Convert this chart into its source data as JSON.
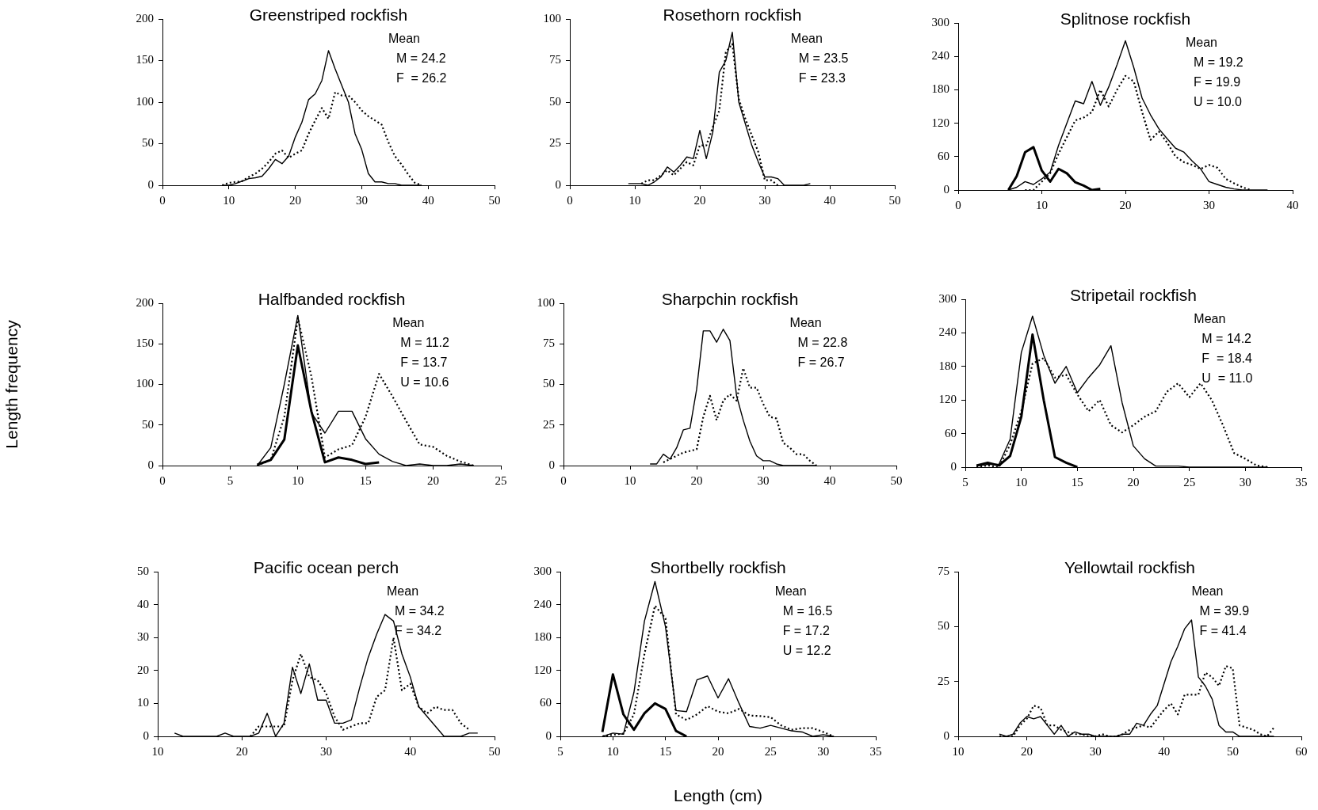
{
  "chart_data": [
    {
      "type": "line",
      "title": "Greenstriped rockfish",
      "xlim": [
        0,
        50
      ],
      "ylim": [
        0,
        200
      ],
      "xticks": [
        0,
        10,
        20,
        30,
        40,
        50
      ],
      "yticks": [
        0,
        50,
        100,
        150,
        200
      ],
      "marker": "none",
      "annotations": [
        "Mean",
        "M = 24.2",
        "F  = 26.2"
      ],
      "series": [
        {
          "color": "#000000",
          "line_style": "solid",
          "x": [
            9,
            10,
            11,
            12,
            13,
            14,
            15,
            16,
            17,
            18,
            19,
            20,
            21,
            22,
            23,
            24,
            25,
            26,
            27,
            28,
            29,
            30,
            31,
            32,
            33,
            34,
            35,
            36,
            37,
            38,
            39
          ],
          "values": [
            0,
            0,
            2,
            5,
            8,
            9,
            11,
            20,
            31,
            26,
            35,
            58,
            76,
            103,
            110,
            126,
            162,
            140,
            120,
            100,
            62,
            43,
            14,
            4,
            4,
            2,
            2,
            0,
            0,
            0,
            0
          ]
        },
        {
          "color": "#000000",
          "line_style": "dotted",
          "x": [
            9,
            10,
            11,
            12,
            13,
            14,
            15,
            16,
            17,
            18,
            19,
            20,
            21,
            22,
            23,
            24,
            25,
            26,
            27,
            28,
            29,
            30,
            31,
            32,
            33,
            34,
            35,
            36,
            37,
            38,
            39
          ],
          "values": [
            0,
            3,
            4,
            5,
            10,
            14,
            20,
            28,
            38,
            42,
            33,
            38,
            42,
            62,
            78,
            93,
            80,
            112,
            108,
            108,
            100,
            90,
            83,
            78,
            73,
            52,
            35,
            25,
            13,
            3,
            0
          ]
        }
      ]
    },
    {
      "type": "line",
      "title": "Rosethorn rockfish",
      "xlim": [
        0,
        50
      ],
      "ylim": [
        0,
        100
      ],
      "xticks": [
        0,
        10,
        20,
        30,
        40,
        50
      ],
      "yticks": [
        0,
        25,
        50,
        75,
        100
      ],
      "marker": "none",
      "annotations": [
        "Mean",
        "M = 23.5",
        "F = 23.3"
      ],
      "series": [
        {
          "color": "#000000",
          "line_style": "solid",
          "x": [
            9,
            10,
            11,
            12,
            13,
            14,
            15,
            16,
            17,
            18,
            19,
            20,
            21,
            22,
            23,
            24,
            25,
            26,
            27,
            28,
            29,
            30,
            31,
            32,
            33,
            34,
            35,
            36,
            37
          ],
          "values": [
            1,
            1,
            1,
            0,
            2,
            5,
            11,
            8,
            12,
            17,
            16,
            33,
            16,
            32,
            68,
            75,
            92,
            50,
            37,
            24,
            14,
            5,
            5,
            4,
            0,
            0,
            0,
            0,
            1
          ]
        },
        {
          "color": "#000000",
          "line_style": "dotted",
          "x": [
            11,
            12,
            13,
            14,
            15,
            16,
            17,
            18,
            19,
            20,
            21,
            22,
            23,
            24,
            25,
            26,
            27,
            28,
            29,
            30,
            31,
            32
          ],
          "values": [
            1,
            3,
            3,
            6,
            9,
            6,
            10,
            14,
            12,
            24,
            24,
            35,
            45,
            80,
            85,
            52,
            40,
            30,
            20,
            3,
            3,
            0
          ]
        }
      ]
    },
    {
      "type": "line",
      "title": "Splitnose rockfish",
      "xlim": [
        0,
        40
      ],
      "ylim": [
        0,
        300
      ],
      "xticks": [
        0,
        10,
        20,
        30,
        40
      ],
      "yticks": [
        0,
        60,
        120,
        180,
        240,
        300
      ],
      "marker": "none",
      "annotations": [
        "Mean",
        "M = 19.2",
        "F = 19.9",
        "U = 10.0"
      ],
      "series": [
        {
          "color": "#000000",
          "line_style": "solid",
          "x": [
            6,
            7,
            8,
            9,
            10,
            11,
            12,
            13,
            14,
            15,
            16,
            17,
            18,
            19,
            20,
            21,
            22,
            23,
            24,
            25,
            26,
            27,
            28,
            29,
            30,
            31,
            32,
            33,
            34,
            35,
            36,
            37
          ],
          "values": [
            0,
            5,
            15,
            10,
            20,
            32,
            80,
            120,
            160,
            155,
            195,
            152,
            185,
            225,
            268,
            220,
            165,
            135,
            110,
            92,
            75,
            68,
            52,
            38,
            15,
            10,
            5,
            2,
            0,
            0,
            0,
            0
          ]
        },
        {
          "color": "#000000",
          "line_style": "dotted",
          "x": [
            8,
            9,
            10,
            11,
            12,
            13,
            14,
            15,
            16,
            17,
            18,
            19,
            20,
            21,
            22,
            23,
            24,
            25,
            26,
            27,
            28,
            29,
            30,
            31,
            32,
            33,
            34,
            35
          ],
          "values": [
            0,
            0,
            15,
            30,
            65,
            95,
            125,
            130,
            140,
            180,
            150,
            180,
            205,
            195,
            140,
            90,
            105,
            85,
            60,
            50,
            45,
            38,
            45,
            40,
            20,
            12,
            5,
            0
          ]
        },
        {
          "color": "#000000",
          "line_style": "solid",
          "x": [
            6,
            7,
            8,
            9,
            10,
            11,
            12,
            13,
            14,
            15,
            16,
            17
          ],
          "values": [
            0,
            25,
            68,
            77,
            35,
            15,
            38,
            30,
            14,
            8,
            0,
            2
          ]
        }
      ]
    },
    {
      "type": "line",
      "title": "Halfbanded rockfish",
      "ylabel": "Length frequency",
      "xlim": [
        0,
        25
      ],
      "ylim": [
        0,
        200
      ],
      "xticks": [
        0,
        5,
        10,
        15,
        20,
        25
      ],
      "yticks": [
        0,
        50,
        100,
        150,
        200
      ],
      "marker": "none",
      "annotations": [
        "Mean",
        "M = 11.2",
        "F = 13.7",
        "U = 10.6"
      ],
      "series": [
        {
          "color": "#000000",
          "line_style": "solid",
          "x": [
            7,
            8,
            9,
            10,
            11,
            12,
            13,
            14,
            15,
            16,
            17,
            18,
            19,
            20,
            21,
            22,
            23
          ],
          "values": [
            0,
            22,
            100,
            185,
            65,
            40,
            67,
            67,
            33,
            14,
            5,
            0,
            2,
            0,
            0,
            2,
            0
          ]
        },
        {
          "color": "#000000",
          "line_style": "dotted",
          "x": [
            7,
            8,
            9,
            10,
            11,
            12,
            13,
            14,
            15,
            16,
            17,
            18,
            19,
            20,
            21,
            22,
            23
          ],
          "values": [
            0,
            7,
            60,
            182,
            110,
            10,
            20,
            25,
            60,
            113,
            85,
            55,
            26,
            23,
            12,
            5,
            0
          ]
        },
        {
          "color": "#000000",
          "line_style": "solid",
          "x": [
            7,
            8,
            9,
            10,
            11,
            12,
            13,
            14,
            15,
            16
          ],
          "values": [
            1,
            7,
            32,
            148,
            67,
            4,
            10,
            7,
            2,
            4
          ]
        }
      ]
    },
    {
      "type": "line",
      "title": "Sharpchin rockfish",
      "xlim": [
        0,
        50
      ],
      "ylim": [
        0,
        100
      ],
      "xticks": [
        0,
        10,
        20,
        30,
        40,
        50
      ],
      "yticks": [
        0,
        25,
        50,
        75,
        100
      ],
      "marker": "none",
      "annotations": [
        "Mean",
        "M = 22.8",
        "F = 26.7"
      ],
      "series": [
        {
          "color": "#000000",
          "line_style": "solid",
          "x": [
            13,
            14,
            15,
            16,
            17,
            18,
            19,
            20,
            21,
            22,
            23,
            24,
            25,
            26,
            27,
            28,
            29,
            30,
            31,
            32,
            33,
            34,
            35,
            36,
            37,
            38
          ],
          "values": [
            1,
            1,
            7,
            4,
            11,
            22,
            23,
            47,
            83,
            83,
            76,
            84,
            77,
            43,
            28,
            15,
            6,
            3,
            3,
            1,
            0,
            0,
            0,
            0,
            0,
            0
          ]
        },
        {
          "color": "#000000",
          "line_style": "dotted",
          "x": [
            15,
            16,
            17,
            18,
            19,
            20,
            21,
            22,
            23,
            24,
            25,
            26,
            27,
            28,
            29,
            30,
            31,
            32,
            33,
            34,
            35,
            36,
            37,
            38
          ],
          "values": [
            2,
            4,
            6,
            8,
            9,
            10,
            30,
            43,
            28,
            40,
            44,
            40,
            60,
            48,
            48,
            38,
            30,
            29,
            14,
            11,
            7,
            7,
            3,
            0
          ]
        }
      ]
    },
    {
      "type": "line",
      "title": "Stripetail rockfish",
      "xlim": [
        5,
        35
      ],
      "ylim": [
        0,
        300
      ],
      "xticks": [
        5,
        10,
        15,
        20,
        25,
        30,
        35
      ],
      "yticks": [
        0,
        60,
        120,
        180,
        240,
        300
      ],
      "marker": "none",
      "annotations": [
        "Mean",
        "M = 14.2",
        "F  = 18.4",
        "U  = 11.0"
      ],
      "series": [
        {
          "color": "#000000",
          "line_style": "solid",
          "x": [
            6,
            7,
            8,
            9,
            10,
            11,
            12,
            13,
            14,
            15,
            16,
            17,
            18,
            19,
            20,
            21,
            22,
            23,
            24,
            25,
            26,
            27,
            28,
            29,
            30,
            31,
            32
          ],
          "values": [
            2,
            5,
            5,
            50,
            205,
            270,
            200,
            150,
            180,
            133,
            160,
            183,
            217,
            115,
            38,
            15,
            2,
            2,
            2,
            0,
            0,
            0,
            0,
            0,
            0,
            0,
            0
          ]
        },
        {
          "color": "#000000",
          "line_style": "dotted",
          "x": [
            6,
            7,
            8,
            9,
            10,
            11,
            12,
            13,
            14,
            15,
            16,
            17,
            18,
            19,
            20,
            21,
            22,
            23,
            24,
            25,
            26,
            27,
            28,
            29,
            30,
            31,
            32
          ],
          "values": [
            0,
            3,
            0,
            40,
            100,
            185,
            195,
            160,
            165,
            130,
            100,
            120,
            75,
            62,
            75,
            90,
            100,
            135,
            150,
            125,
            150,
            120,
            75,
            25,
            15,
            3,
            0
          ]
        },
        {
          "color": "#000000",
          "line_style": "solid",
          "x": [
            6,
            7,
            8,
            9,
            10,
            11,
            12,
            13,
            14,
            15
          ],
          "values": [
            3,
            8,
            3,
            20,
            90,
            237,
            120,
            18,
            8,
            0
          ]
        }
      ]
    },
    {
      "type": "line",
      "title": "Pacific ocean perch",
      "xlim": [
        10,
        50
      ],
      "ylim": [
        0,
        50
      ],
      "xticks": [
        10,
        20,
        30,
        40,
        50
      ],
      "yticks": [
        0,
        10,
        20,
        30,
        40,
        50
      ],
      "marker": "none",
      "annotations": [
        "Mean",
        "M = 34.2",
        "F = 34.2"
      ],
      "series": [
        {
          "color": "#000000",
          "line_style": "solid",
          "x": [
            12,
            13,
            14,
            15,
            16,
            17,
            18,
            19,
            20,
            21,
            22,
            23,
            24,
            25,
            26,
            27,
            28,
            29,
            30,
            31,
            32,
            33,
            34,
            35,
            36,
            37,
            38,
            39,
            40,
            41,
            42,
            43,
            44,
            45,
            46,
            47,
            48
          ],
          "values": [
            1,
            0,
            0,
            0,
            0,
            0,
            1,
            0,
            0,
            0,
            1,
            7,
            0,
            4,
            21,
            13,
            22,
            11,
            11,
            4,
            4,
            5,
            15,
            24,
            31,
            37,
            35,
            25,
            18,
            9,
            6,
            3,
            0,
            0,
            0,
            1,
            1
          ]
        },
        {
          "color": "#000000",
          "line_style": "dotted",
          "x": [
            21,
            22,
            23,
            24,
            25,
            26,
            27,
            28,
            29,
            30,
            31,
            32,
            33,
            34,
            35,
            36,
            37,
            38,
            39,
            40,
            41,
            42,
            43,
            44,
            45,
            46,
            47
          ],
          "values": [
            0,
            3,
            3,
            3,
            3,
            17,
            25,
            18,
            17,
            13,
            6,
            2,
            3,
            4,
            4,
            12,
            14,
            30,
            14,
            16,
            9,
            7,
            9,
            8,
            8,
            4,
            2
          ]
        }
      ]
    },
    {
      "type": "line",
      "title": "Shortbelly rockfish",
      "xlabel": "Length (cm)",
      "xlim": [
        5,
        35
      ],
      "ylim": [
        0,
        300
      ],
      "xticks": [
        5,
        10,
        15,
        20,
        25,
        30,
        35
      ],
      "yticks": [
        0,
        60,
        120,
        180,
        240,
        300
      ],
      "marker": "none",
      "annotations": [
        "Mean",
        "M = 16.5",
        "F = 17.2",
        "U = 12.2"
      ],
      "series": [
        {
          "color": "#000000",
          "line_style": "solid",
          "x": [
            9,
            10,
            11,
            12,
            13,
            14,
            15,
            16,
            17,
            18,
            19,
            20,
            21,
            22,
            23,
            24,
            25,
            26,
            27,
            28,
            29,
            30,
            31
          ],
          "values": [
            0,
            6,
            4,
            80,
            210,
            282,
            200,
            47,
            45,
            103,
            110,
            70,
            105,
            60,
            18,
            15,
            20,
            15,
            10,
            8,
            0,
            3,
            0
          ]
        },
        {
          "color": "#000000",
          "line_style": "dotted",
          "x": [
            9,
            10,
            11,
            12,
            13,
            14,
            15,
            16,
            17,
            18,
            19,
            20,
            21,
            22,
            23,
            24,
            25,
            26,
            27,
            28,
            29,
            30,
            31
          ],
          "values": [
            0,
            3,
            5,
            40,
            150,
            238,
            215,
            40,
            30,
            40,
            55,
            45,
            42,
            50,
            38,
            37,
            35,
            20,
            12,
            15,
            15,
            8,
            0
          ]
        },
        {
          "color": "#000000",
          "line_style": "solid",
          "x": [
            9,
            10,
            11,
            12,
            13,
            14,
            15,
            16,
            17
          ],
          "values": [
            8,
            113,
            40,
            12,
            42,
            60,
            50,
            10,
            0
          ]
        }
      ]
    },
    {
      "type": "line",
      "title": "Yellowtail rockfish",
      "xlim": [
        10,
        60
      ],
      "ylim": [
        0,
        75
      ],
      "xticks": [
        10,
        20,
        30,
        40,
        50,
        60
      ],
      "yticks": [
        0,
        25,
        50,
        75
      ],
      "marker": "none",
      "annotations": [
        "Mean",
        "M = 39.9",
        "F = 41.4"
      ],
      "series": [
        {
          "color": "#000000",
          "line_style": "solid",
          "x": [
            16,
            17,
            18,
            19,
            20,
            21,
            22,
            23,
            24,
            25,
            26,
            27,
            28,
            29,
            30,
            31,
            32,
            33,
            34,
            35,
            36,
            37,
            38,
            39,
            40,
            41,
            42,
            43,
            44,
            45,
            46,
            47,
            48,
            49,
            50,
            51,
            52,
            53,
            54,
            55,
            56
          ],
          "values": [
            1,
            0,
            1,
            6,
            9,
            8,
            9,
            5,
            1,
            5,
            0,
            2,
            1,
            1,
            0,
            0,
            0,
            0,
            1,
            1,
            6,
            5,
            10,
            14,
            24,
            34,
            41,
            49,
            53,
            27,
            23,
            17,
            5,
            2,
            2,
            0,
            0,
            0,
            0,
            0,
            0
          ]
        },
        {
          "color": "#000000",
          "line_style": "dotted",
          "x": [
            16,
            17,
            18,
            19,
            20,
            21,
            22,
            23,
            24,
            25,
            26,
            27,
            28,
            29,
            30,
            31,
            32,
            33,
            34,
            35,
            36,
            37,
            38,
            39,
            40,
            41,
            42,
            43,
            44,
            45,
            46,
            47,
            48,
            49,
            50,
            51,
            52,
            53,
            54,
            55,
            56
          ],
          "values": [
            0,
            0,
            0,
            5,
            8,
            14,
            13,
            5,
            5,
            3,
            2,
            1,
            1,
            0,
            0,
            1,
            0,
            0,
            1,
            3,
            4,
            5,
            4,
            8,
            12,
            15,
            10,
            19,
            19,
            19,
            29,
            27,
            23,
            32,
            31,
            5,
            4,
            3,
            1,
            0,
            4
          ]
        }
      ]
    }
  ]
}
